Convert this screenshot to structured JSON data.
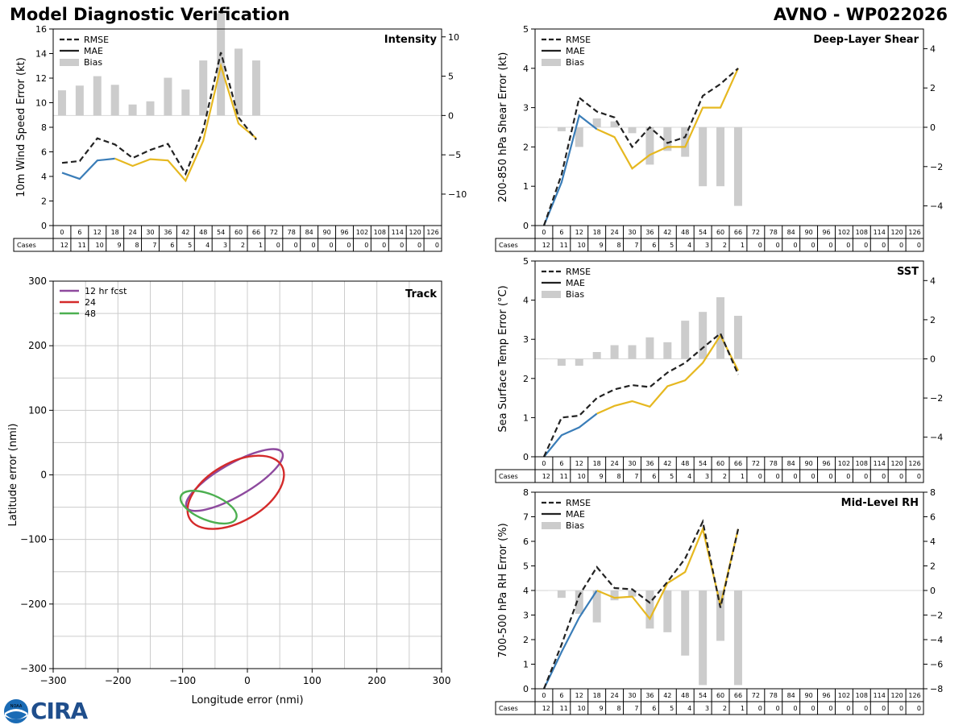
{
  "header": {
    "title": "Model Diagnostic Verification",
    "storm_id": "AVNO - WP022026"
  },
  "colors": {
    "rmse": "#222222",
    "mae_blue": "#3a7db8",
    "mae_yellow": "#e6b820",
    "bias": "#cccccc",
    "track_12": "#8e4a9e",
    "track_24": "#d42a2a",
    "track_48": "#4caf50",
    "grid": "#cccccc"
  },
  "logos": {
    "noaa": "NOAA",
    "cira": "CIRA"
  },
  "chart_data": [
    {
      "id": "intensity",
      "type": "line",
      "title": "Intensity",
      "ylabel": "10m Wind Speed Error (kt)",
      "ylim": [
        0,
        16
      ],
      "yticks": [
        0,
        2,
        4,
        6,
        8,
        10,
        12,
        14,
        16
      ],
      "y2lim": [
        -14,
        11
      ],
      "y2ticks": [
        -10,
        -5,
        0,
        5,
        10
      ],
      "legend": [
        "RMSE",
        "MAE",
        "Bias"
      ],
      "hours": [
        0,
        6,
        12,
        18,
        24,
        30,
        36,
        42,
        48,
        54,
        60,
        66,
        72,
        78,
        84,
        90,
        96,
        102,
        108,
        114,
        120,
        126
      ],
      "cases": [
        12,
        11,
        10,
        9,
        8,
        7,
        6,
        5,
        4,
        3,
        2,
        1,
        0,
        0,
        0,
        0,
        0,
        0,
        0,
        0,
        0,
        0
      ],
      "cases_label": "Cases",
      "rmse": [
        [
          0,
          5.1
        ],
        [
          6,
          5.25
        ],
        [
          12,
          7.1
        ],
        [
          18,
          6.6
        ],
        [
          24,
          5.5
        ],
        [
          30,
          6.15
        ],
        [
          36,
          6.65
        ],
        [
          42,
          4.2
        ],
        [
          48,
          7.8
        ],
        [
          54,
          14.1
        ],
        [
          60,
          8.8
        ],
        [
          66,
          7.0
        ]
      ],
      "mae_blue_segment": [
        [
          0,
          4.3
        ],
        [
          6,
          3.8
        ],
        [
          12,
          5.3
        ],
        [
          18,
          5.45
        ]
      ],
      "mae_yellow_segment": [
        [
          18,
          5.45
        ],
        [
          24,
          4.85
        ],
        [
          30,
          5.4
        ],
        [
          36,
          5.3
        ],
        [
          42,
          3.65
        ],
        [
          48,
          6.9
        ],
        [
          54,
          13.0
        ],
        [
          60,
          8.3
        ],
        [
          66,
          7.1
        ]
      ],
      "bias": [
        [
          0,
          3.2
        ],
        [
          6,
          3.8
        ],
        [
          12,
          5.0
        ],
        [
          18,
          3.9
        ],
        [
          24,
          1.4
        ],
        [
          30,
          1.8
        ],
        [
          36,
          4.8
        ],
        [
          42,
          3.3
        ],
        [
          48,
          7.0
        ],
        [
          54,
          13.0
        ],
        [
          60,
          8.5
        ],
        [
          66,
          7.0
        ]
      ]
    },
    {
      "id": "shear",
      "type": "line",
      "title": "Deep-Layer Shear",
      "ylabel": "200-850 hPa Shear Error (kt)",
      "ylim": [
        0,
        5
      ],
      "yticks": [
        0,
        1,
        2,
        3,
        4,
        5
      ],
      "y2lim": [
        -5,
        5
      ],
      "y2ticks": [
        -4,
        -2,
        0,
        2,
        4
      ],
      "legend": [
        "RMSE",
        "MAE",
        "Bias"
      ],
      "hours": [
        0,
        6,
        12,
        18,
        24,
        30,
        36,
        42,
        48,
        54,
        60,
        66,
        72,
        78,
        84,
        90,
        96,
        102,
        108,
        114,
        120,
        126
      ],
      "cases": [
        12,
        11,
        10,
        9,
        8,
        7,
        6,
        5,
        4,
        3,
        2,
        1,
        0,
        0,
        0,
        0,
        0,
        0,
        0,
        0,
        0,
        0
      ],
      "cases_label": "Cases",
      "rmse": [
        [
          0,
          0.0
        ],
        [
          6,
          1.3
        ],
        [
          12,
          3.25
        ],
        [
          18,
          2.9
        ],
        [
          24,
          2.75
        ],
        [
          30,
          2.0
        ],
        [
          36,
          2.5
        ],
        [
          42,
          2.1
        ],
        [
          48,
          2.25
        ],
        [
          54,
          3.3
        ],
        [
          60,
          3.6
        ],
        [
          66,
          4.0
        ]
      ],
      "mae_blue_segment": [
        [
          0,
          0.0
        ],
        [
          6,
          1.1
        ],
        [
          12,
          2.8
        ],
        [
          18,
          2.45
        ]
      ],
      "mae_yellow_segment": [
        [
          18,
          2.45
        ],
        [
          24,
          2.25
        ],
        [
          30,
          1.45
        ],
        [
          36,
          1.8
        ],
        [
          42,
          2.0
        ],
        [
          48,
          2.0
        ],
        [
          54,
          3.0
        ],
        [
          60,
          3.0
        ],
        [
          66,
          4.0
        ]
      ],
      "bias": [
        [
          0,
          0.0
        ],
        [
          6,
          -0.2
        ],
        [
          12,
          -1.0
        ],
        [
          18,
          0.45
        ],
        [
          24,
          0.3
        ],
        [
          30,
          -0.3
        ],
        [
          36,
          -1.9
        ],
        [
          42,
          -1.2
        ],
        [
          48,
          -1.5
        ],
        [
          54,
          -3.0
        ],
        [
          60,
          -3.0
        ],
        [
          66,
          -4.0
        ]
      ]
    },
    {
      "id": "sst",
      "type": "line",
      "title": "SST",
      "ylabel": "Sea Surface Temp Error (°C)",
      "ylim": [
        0,
        5
      ],
      "yticks": [
        0,
        1,
        2,
        3,
        4,
        5
      ],
      "y2lim": [
        -5,
        5
      ],
      "y2ticks": [
        -4,
        -2,
        0,
        2,
        4
      ],
      "legend": [
        "RMSE",
        "MAE",
        "Bias"
      ],
      "hours": [
        0,
        6,
        12,
        18,
        24,
        30,
        36,
        42,
        48,
        54,
        60,
        66,
        72,
        78,
        84,
        90,
        96,
        102,
        108,
        114,
        120,
        126
      ],
      "cases": [
        12,
        11,
        10,
        9,
        8,
        7,
        6,
        5,
        4,
        3,
        2,
        1,
        0,
        0,
        0,
        0,
        0,
        0,
        0,
        0,
        0,
        0
      ],
      "cases_label": "Cases",
      "rmse": [
        [
          0,
          0.0
        ],
        [
          6,
          1.0
        ],
        [
          12,
          1.05
        ],
        [
          18,
          1.5
        ],
        [
          24,
          1.72
        ],
        [
          30,
          1.83
        ],
        [
          36,
          1.78
        ],
        [
          42,
          2.15
        ],
        [
          48,
          2.4
        ],
        [
          54,
          2.78
        ],
        [
          60,
          3.15
        ],
        [
          66,
          2.1
        ]
      ],
      "mae_blue_segment": [
        [
          0,
          0.0
        ],
        [
          6,
          0.55
        ],
        [
          12,
          0.75
        ],
        [
          18,
          1.1
        ]
      ],
      "mae_yellow_segment": [
        [
          18,
          1.1
        ],
        [
          24,
          1.3
        ],
        [
          30,
          1.42
        ],
        [
          36,
          1.28
        ],
        [
          42,
          1.8
        ],
        [
          48,
          1.95
        ],
        [
          54,
          2.4
        ],
        [
          60,
          3.1
        ],
        [
          66,
          2.2
        ]
      ],
      "bias": [
        [
          0,
          0.0
        ],
        [
          6,
          -0.35
        ],
        [
          12,
          -0.35
        ],
        [
          18,
          0.35
        ],
        [
          24,
          0.7
        ],
        [
          30,
          0.7
        ],
        [
          36,
          1.1
        ],
        [
          42,
          0.85
        ],
        [
          48,
          1.95
        ],
        [
          54,
          2.4
        ],
        [
          60,
          3.15
        ],
        [
          66,
          2.2
        ]
      ]
    },
    {
      "id": "rh",
      "type": "line",
      "title": "Mid-Level RH",
      "ylabel": "700-500 hPa RH Error (%)",
      "ylim": [
        0,
        8
      ],
      "yticks": [
        0,
        1,
        2,
        3,
        4,
        5,
        6,
        7,
        8
      ],
      "y2lim": [
        -8,
        8
      ],
      "y2ticks": [
        -8,
        -6,
        -4,
        -2,
        0,
        2,
        4,
        6,
        8
      ],
      "legend": [
        "RMSE",
        "MAE",
        "Bias"
      ],
      "hours": [
        0,
        6,
        12,
        18,
        24,
        30,
        36,
        42,
        48,
        54,
        60,
        66,
        72,
        78,
        84,
        90,
        96,
        102,
        108,
        114,
        120,
        126
      ],
      "cases": [
        12,
        11,
        10,
        9,
        8,
        7,
        6,
        5,
        4,
        3,
        2,
        1,
        0,
        0,
        0,
        0,
        0,
        0,
        0,
        0,
        0,
        0
      ],
      "cases_label": "Cases",
      "rmse": [
        [
          0,
          0.0
        ],
        [
          6,
          1.8
        ],
        [
          12,
          3.8
        ],
        [
          18,
          4.95
        ],
        [
          24,
          4.1
        ],
        [
          30,
          4.05
        ],
        [
          36,
          3.5
        ],
        [
          42,
          4.35
        ],
        [
          48,
          5.3
        ],
        [
          54,
          6.8
        ],
        [
          60,
          3.3
        ],
        [
          66,
          6.5
        ]
      ],
      "mae_blue_segment": [
        [
          0,
          0.0
        ],
        [
          6,
          1.5
        ],
        [
          12,
          2.9
        ],
        [
          18,
          4.0
        ]
      ],
      "mae_yellow_segment": [
        [
          18,
          4.0
        ],
        [
          24,
          3.7
        ],
        [
          30,
          3.75
        ],
        [
          36,
          2.85
        ],
        [
          42,
          4.3
        ],
        [
          48,
          4.75
        ],
        [
          54,
          6.5
        ],
        [
          60,
          3.4
        ],
        [
          66,
          6.5
        ]
      ],
      "bias": [
        [
          0,
          0.0
        ],
        [
          6,
          -0.6
        ],
        [
          12,
          -1.9
        ],
        [
          18,
          -2.6
        ],
        [
          24,
          -0.8
        ],
        [
          30,
          -0.5
        ],
        [
          36,
          -3.1
        ],
        [
          42,
          -3.4
        ],
        [
          48,
          -5.3
        ],
        [
          54,
          -7.7
        ],
        [
          60,
          -4.1
        ],
        [
          66,
          -7.7
        ]
      ]
    },
    {
      "id": "track",
      "type": "scatter",
      "title": "Track",
      "xlabel": "Longitude error (nmi)",
      "ylabel": "Latitude error (nmi)",
      "xlim": [
        -300,
        300
      ],
      "ylim": [
        -300,
        300
      ],
      "xticks": [
        -300,
        -200,
        -100,
        0,
        100,
        200,
        300
      ],
      "yticks": [
        -300,
        -200,
        -100,
        0,
        100,
        200,
        300
      ],
      "ellipses": [
        {
          "name": "12 hr fcst",
          "cx": -20,
          "cy": -8,
          "rx": 85,
          "ry": 25,
          "angle_deg": 30
        },
        {
          "name": "24",
          "cx": -18,
          "cy": -27,
          "rx": 82,
          "ry": 45,
          "angle_deg": 30
        },
        {
          "name": "48",
          "cx": -60,
          "cy": -50,
          "rx": 46,
          "ry": 20,
          "angle_deg": -22
        }
      ]
    }
  ]
}
